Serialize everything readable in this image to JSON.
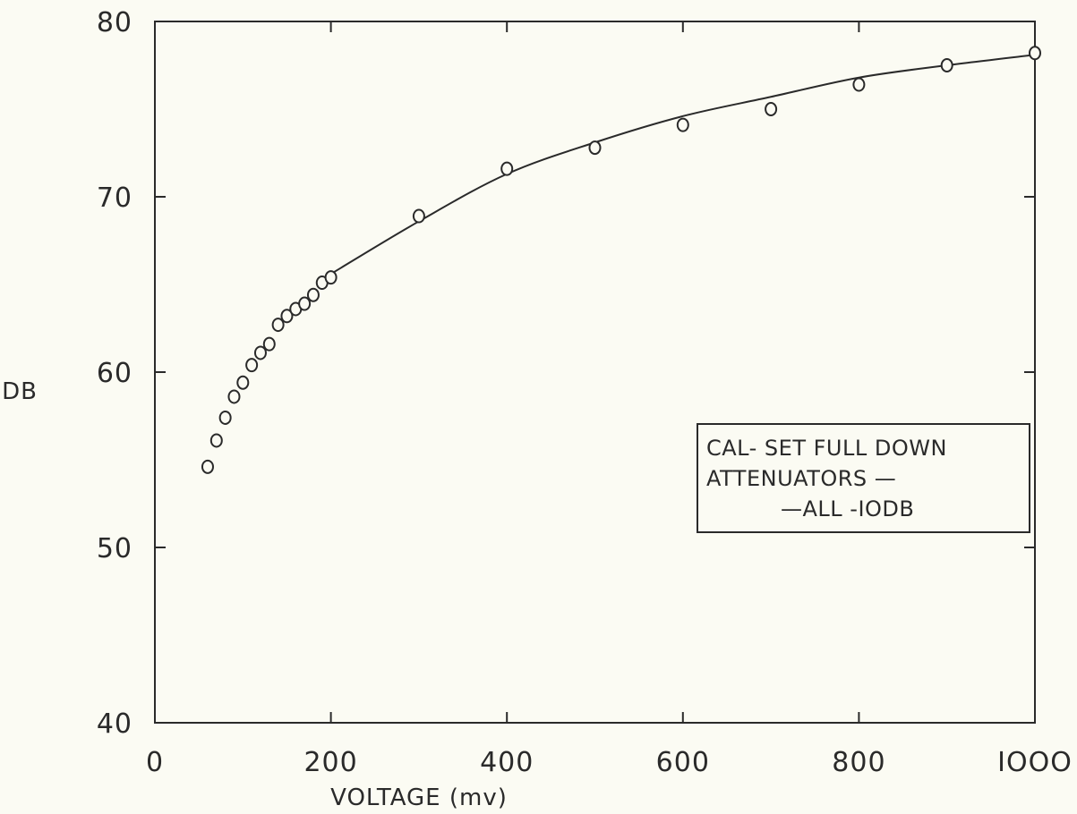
{
  "chart_data": {
    "type": "scatter",
    "title": "",
    "xlabel": "VOLTAGE (mv)",
    "ylabel": "DB",
    "xlim": [
      0,
      1000
    ],
    "ylim": [
      40,
      80
    ],
    "x_ticks": [
      0,
      200,
      400,
      600,
      800,
      1000
    ],
    "x_tick_labels": [
      "0",
      "200",
      "400",
      "600",
      "800",
      "IOOO"
    ],
    "y_ticks": [
      40,
      50,
      60,
      70,
      80
    ],
    "y_tick_labels": [
      "40",
      "50",
      "60",
      "70",
      "80"
    ],
    "grid": false,
    "legend_box": {
      "placement": "middle-right",
      "lines": [
        "CAL- SET FULL DOWN",
        "ATTENUATORS —",
        "—ALL -IODB"
      ]
    },
    "series": [
      {
        "marker": "open-circle",
        "x": [
          60,
          70,
          80,
          90,
          100,
          110,
          120,
          130,
          140,
          150,
          160,
          170,
          180,
          190,
          200,
          300,
          400,
          500,
          600,
          700,
          800,
          900,
          1000
        ],
        "y": [
          54.6,
          56.1,
          57.4,
          58.6,
          59.4,
          60.4,
          61.1,
          61.6,
          62.7,
          63.2,
          63.6,
          63.9,
          64.4,
          65.1,
          65.4,
          68.9,
          71.6,
          72.8,
          74.1,
          75.0,
          76.4,
          77.5,
          78.2
        ]
      }
    ],
    "fit_curve": {
      "style": "solid",
      "x": [
        200,
        300,
        400,
        500,
        600,
        700,
        800,
        900,
        1000
      ],
      "y": [
        65.6,
        68.6,
        71.3,
        73.1,
        74.6,
        75.7,
        76.8,
        77.5,
        78.1
      ]
    }
  }
}
